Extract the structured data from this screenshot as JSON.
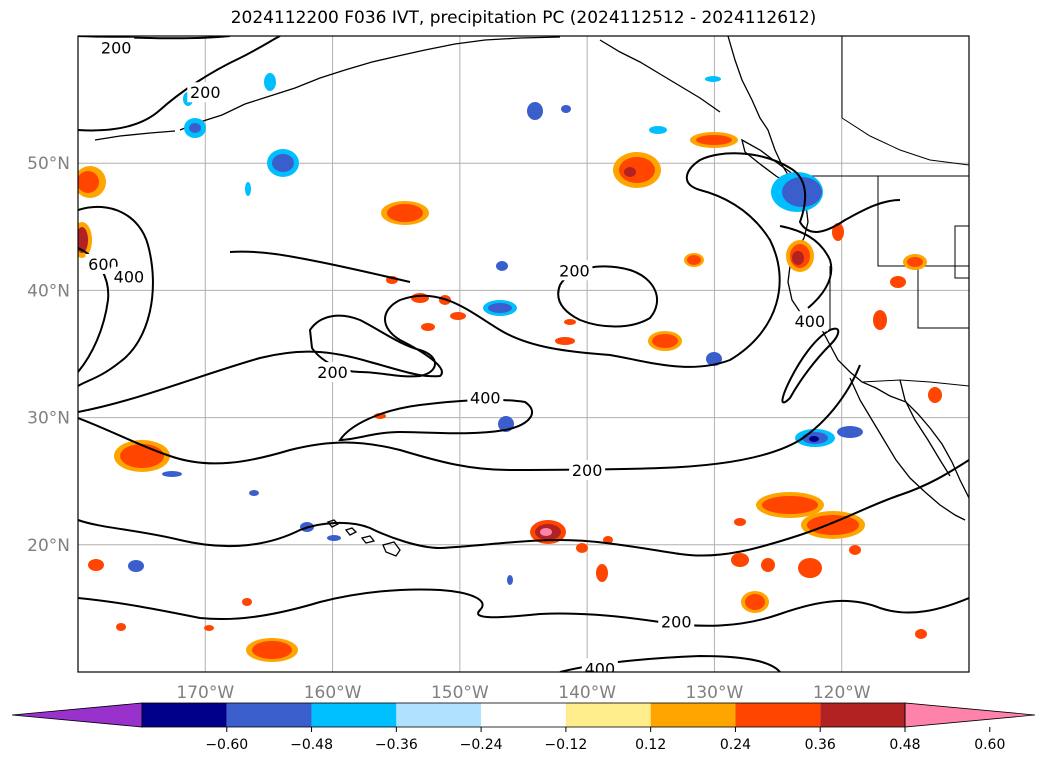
{
  "title": "2024112200 F036 IVT, precipitation PC (2024112512 - 2024112612)",
  "map": {
    "projection": "PlateCarree",
    "lon_range": [
      -180,
      -110
    ],
    "lat_range": [
      10,
      60
    ],
    "gridlines": true,
    "lat_ticks": [
      {
        "value": 20,
        "label": "20°N"
      },
      {
        "value": 30,
        "label": "30°N"
      },
      {
        "value": 40,
        "label": "40°N"
      },
      {
        "value": 50,
        "label": "50°N"
      }
    ],
    "lon_ticks": [
      {
        "value": -170,
        "label": "170°W"
      },
      {
        "value": -160,
        "label": "160°W"
      },
      {
        "value": -150,
        "label": "150°W"
      },
      {
        "value": -140,
        "label": "140°W"
      },
      {
        "value": -130,
        "label": "130°W"
      },
      {
        "value": -120,
        "label": "120°W"
      }
    ],
    "ivt_contour_labels": [
      {
        "text": "200",
        "lon": -177,
        "lat": 59
      },
      {
        "text": "200",
        "lon": -170,
        "lat": 55.5
      },
      {
        "text": "600",
        "lon": -178,
        "lat": 42
      },
      {
        "text": "400",
        "lon": -176,
        "lat": 41
      },
      {
        "text": "200",
        "lon": -141,
        "lat": 41.5
      },
      {
        "text": "200",
        "lon": -160,
        "lat": 33.5
      },
      {
        "text": "400",
        "lon": -148,
        "lat": 31.5
      },
      {
        "text": "200",
        "lon": -140,
        "lat": 25.8
      },
      {
        "text": "400",
        "lon": -122.5,
        "lat": 37.5
      },
      {
        "text": "200",
        "lon": -133,
        "lat": 13.9
      },
      {
        "text": "400",
        "lon": -139,
        "lat": 10.2
      }
    ]
  },
  "colorbar": {
    "colors": [
      "#9932cc",
      "#00008b",
      "#3a5fcd",
      "#00bfff",
      "#b0e2ff",
      "#ffffff",
      "#ffec8b",
      "#ffa500",
      "#ff4500",
      "#b22222",
      "#ff82ab"
    ],
    "ticks": [
      "−0.60",
      "−0.48",
      "−0.36",
      "−0.24",
      "−0.12",
      "0.12",
      "0.24",
      "0.36",
      "0.48",
      "0.60"
    ]
  }
}
